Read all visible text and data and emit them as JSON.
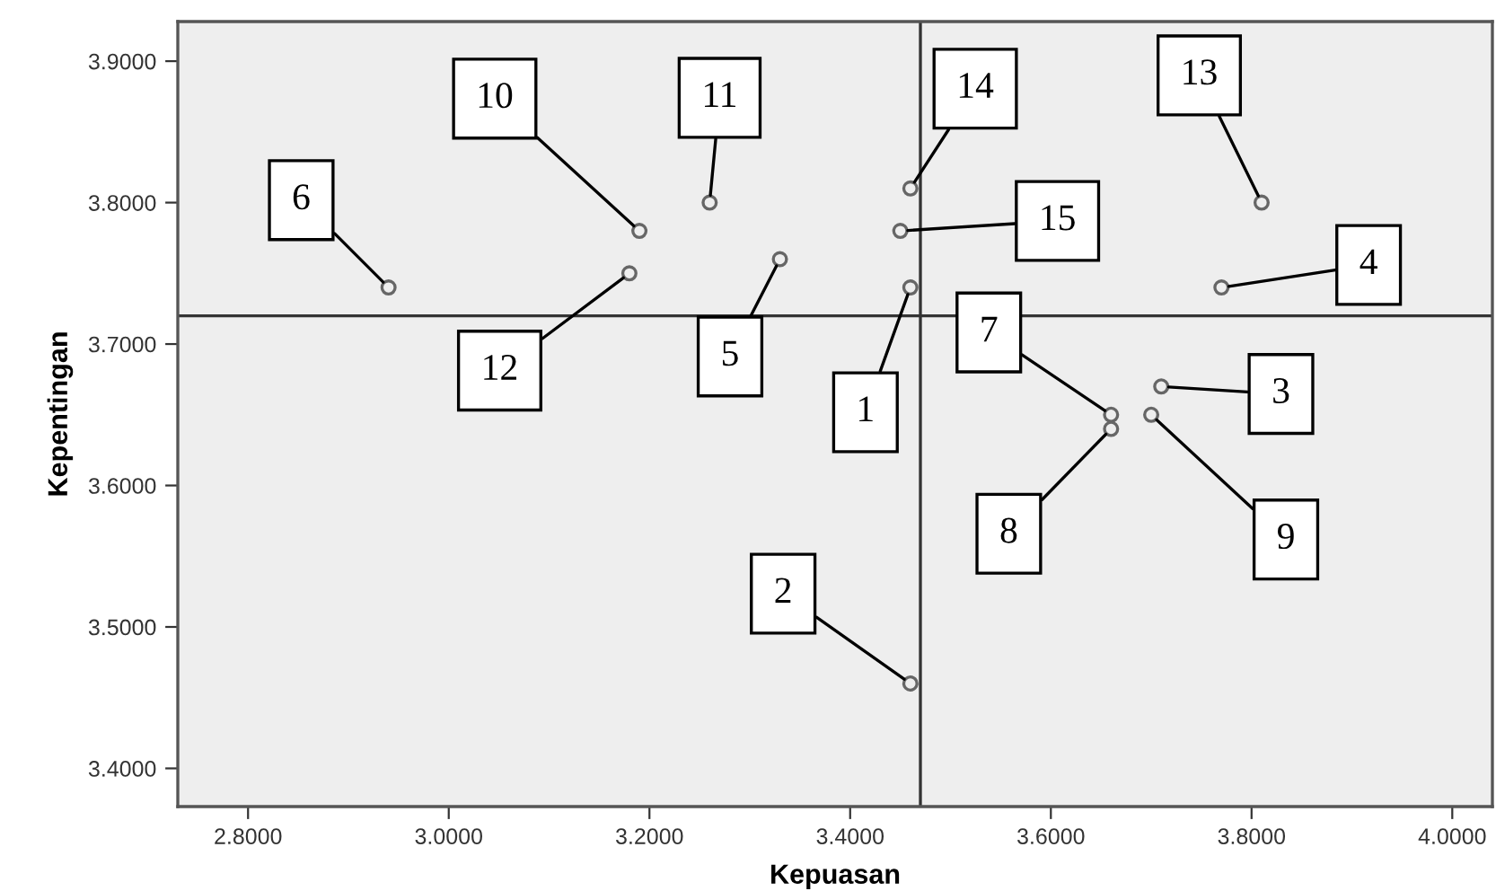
{
  "chart_data": {
    "type": "scatter",
    "xlabel": "Kepuasan",
    "ylabel": "Kepentingan",
    "x": [
      3.46,
      3.46,
      3.71,
      3.77,
      3.33,
      2.94,
      3.66,
      3.66,
      3.7,
      3.19,
      3.26,
      3.18,
      3.81,
      3.46,
      3.45
    ],
    "values": [
      3.74,
      3.46,
      3.67,
      3.74,
      3.76,
      3.74,
      3.65,
      3.64,
      3.65,
      3.78,
      3.8,
      3.75,
      3.8,
      3.81,
      3.78
    ],
    "color": "#666666",
    "marker": "circle",
    "xlim": [
      2.73,
      4.04
    ],
    "ylim": [
      3.373,
      3.928
    ],
    "xticks": [
      {
        "value": 2.8,
        "label": "2.8000"
      },
      {
        "value": 3.0,
        "label": "3.0000"
      },
      {
        "value": 3.2,
        "label": "3.2000"
      },
      {
        "value": 3.4,
        "label": "3.4000"
      },
      {
        "value": 3.6,
        "label": "3.6000"
      },
      {
        "value": 3.8,
        "label": "3.8000"
      },
      {
        "value": 4.0,
        "label": "4.0000"
      }
    ],
    "yticks": [
      {
        "value": 3.4,
        "label": "3.4000"
      },
      {
        "value": 3.5,
        "label": "3.5000"
      },
      {
        "value": 3.6,
        "label": "3.6000"
      },
      {
        "value": 3.7,
        "label": "3.7000"
      },
      {
        "value": 3.8,
        "label": "3.8000"
      },
      {
        "value": 3.9,
        "label": "3.9000"
      }
    ],
    "ref_lines": [
      {
        "axis": "x",
        "value": 3.47,
        "color": "#333333"
      },
      {
        "axis": "y",
        "value": 3.72,
        "color": "#333333"
      }
    ],
    "grid": false,
    "legend": false,
    "annotations": [
      {
        "text": "1",
        "x": 3.46,
        "y": 3.74
      },
      {
        "text": "2",
        "x": 3.46,
        "y": 3.46
      },
      {
        "text": "3",
        "x": 3.71,
        "y": 3.67
      },
      {
        "text": "4",
        "x": 3.77,
        "y": 3.74
      },
      {
        "text": "5",
        "x": 3.33,
        "y": 3.76
      },
      {
        "text": "6",
        "x": 2.94,
        "y": 3.74
      },
      {
        "text": "7",
        "x": 3.66,
        "y": 3.65
      },
      {
        "text": "8",
        "x": 3.66,
        "y": 3.64
      },
      {
        "text": "9",
        "x": 3.7,
        "y": 3.65
      },
      {
        "text": "10",
        "x": 3.19,
        "y": 3.78
      },
      {
        "text": "11",
        "x": 3.26,
        "y": 3.8
      },
      {
        "text": "12",
        "x": 3.18,
        "y": 3.75
      },
      {
        "text": "13",
        "x": 3.81,
        "y": 3.8
      },
      {
        "text": "14",
        "x": 3.46,
        "y": 3.81
      },
      {
        "text": "15",
        "x": 3.45,
        "y": 3.78
      }
    ]
  }
}
